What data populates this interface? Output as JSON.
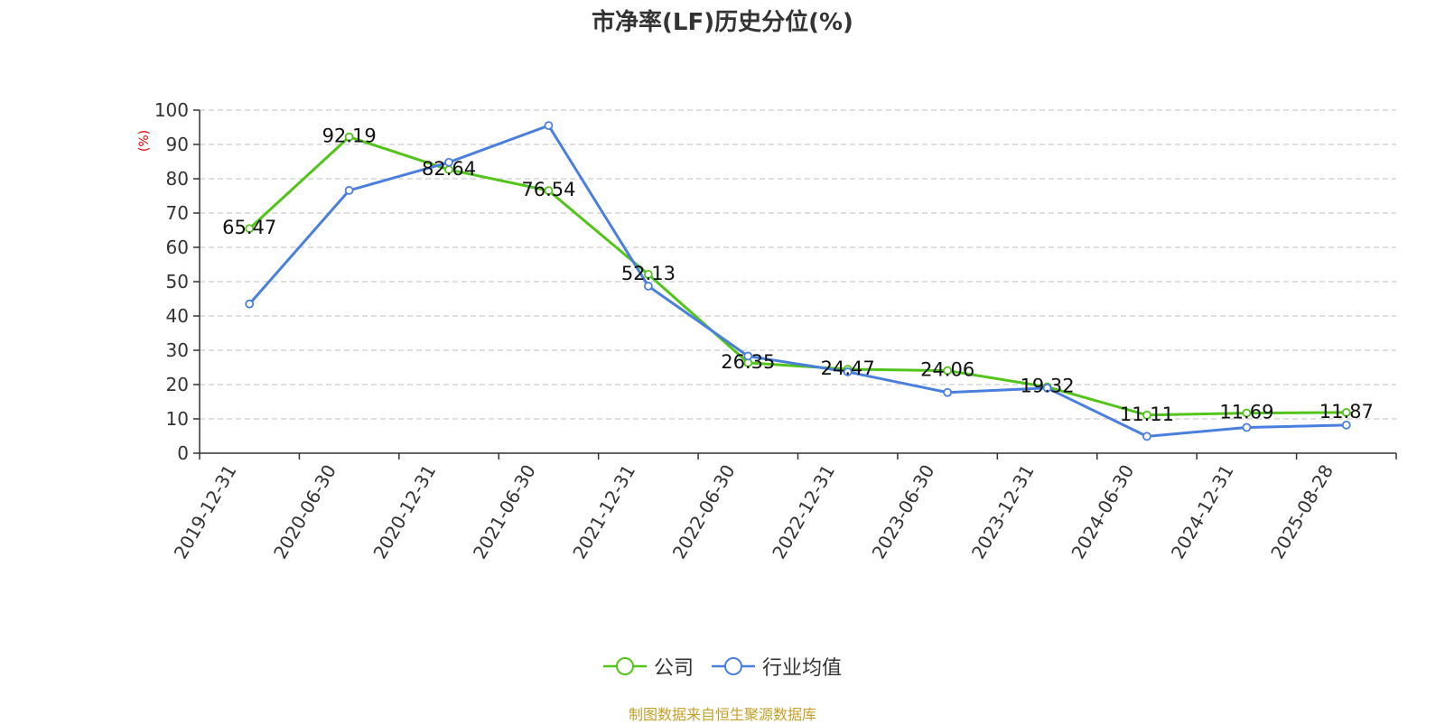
{
  "chart_data": {
    "type": "line",
    "title": "市净率(LF)历史分位(%)",
    "ylabel": "(%)",
    "xlabel": "",
    "ylim": [
      0,
      100
    ],
    "yticks": [
      0,
      10,
      20,
      30,
      40,
      50,
      60,
      70,
      80,
      90,
      100
    ],
    "categories": [
      "2019-12-31",
      "2020-06-30",
      "2020-12-31",
      "2021-06-30",
      "2021-12-31",
      "2022-06-30",
      "2022-12-31",
      "2023-06-30",
      "2023-12-31",
      "2024-06-30",
      "2024-12-31",
      "2025-08-28"
    ],
    "grid": true,
    "legend_position": "bottom-center",
    "series": [
      {
        "name": "公司",
        "color": "#52c41a",
        "values": [
          65.47,
          92.19,
          82.64,
          76.54,
          52.13,
          26.35,
          24.47,
          24.06,
          19.32,
          11.11,
          11.69,
          11.87
        ],
        "labels": [
          "65.47",
          "92.19",
          "82.64",
          "76.54",
          "52.13",
          "26.35",
          "24.47",
          "24.06",
          "19.32",
          "11.11",
          "11.69",
          "11.87"
        ]
      },
      {
        "name": "行业均值",
        "color": "#4a7fde",
        "values": [
          43.5,
          76.6,
          84.8,
          95.5,
          48.7,
          28.3,
          23.7,
          17.7,
          19.0,
          4.9,
          7.5,
          8.2
        ]
      }
    ],
    "ylabel_color": "#e60000"
  },
  "source_note": "制图数据来自恒生聚源数据库"
}
